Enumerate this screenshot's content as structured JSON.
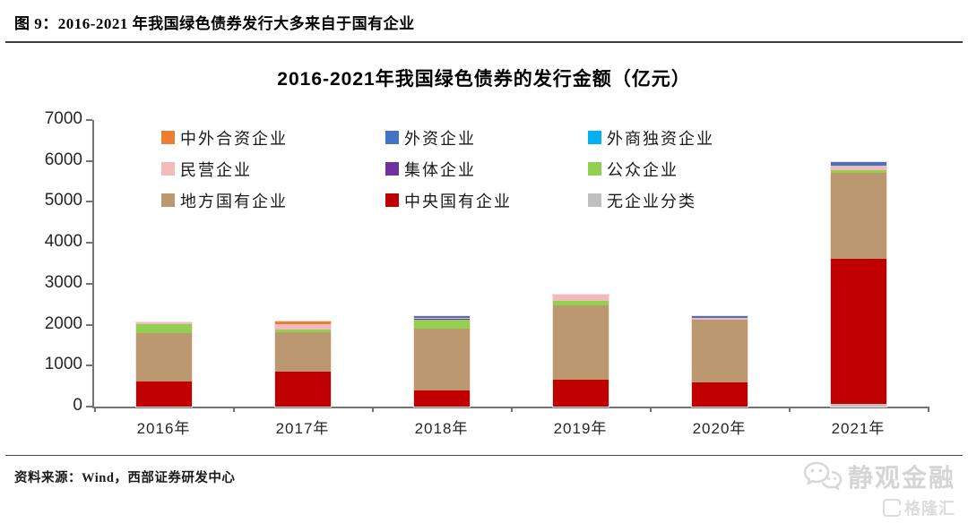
{
  "page": {
    "figure_caption": "图 9：2016-2021 年我国绿色债券发行大多来自于国有企业",
    "source_note": "资料来源：Wind，西部证券研发中心",
    "watermark": {
      "brand": "静观金融",
      "partner_logo": "格隆汇"
    }
  },
  "icons": {
    "wechat_icon": "wechat-bubbles-icon",
    "gelonghui_icon": "gelonghui-g-icon"
  },
  "chart_data": {
    "type": "bar",
    "stacked": true,
    "title": "2016-2021年我国绿色债券的发行金额（亿元）",
    "unit": "亿元",
    "categories": [
      "2016年",
      "2017年",
      "2018年",
      "2019年",
      "2020年",
      "2021年"
    ],
    "ylim": [
      0,
      7000
    ],
    "yticks": [
      0,
      1000,
      2000,
      3000,
      4000,
      5000,
      6000,
      7000
    ],
    "grid": false,
    "legend_position": "top",
    "legend_order": [
      "中外合资企业",
      "外资企业",
      "外商独资企业",
      "民营企业",
      "集体企业",
      "公众企业",
      "地方国有企业",
      "中央国有企业",
      "无企业分类"
    ],
    "stack_order_note": "series listed bottom-to-top of stack",
    "series": [
      {
        "name": "无企业分类",
        "color": "#BFBFBF",
        "values": [
          0,
          0,
          0,
          0,
          0,
          75
        ]
      },
      {
        "name": "中央国有企业",
        "color": "#C00000",
        "values": [
          610,
          855,
          400,
          650,
          585,
          3535
        ]
      },
      {
        "name": "地方国有企业",
        "color": "#BC9870",
        "values": [
          1180,
          970,
          1495,
          1815,
          1540,
          2100
        ]
      },
      {
        "name": "公众企业",
        "color": "#92D050",
        "values": [
          220,
          55,
          220,
          115,
          0,
          75
        ]
      },
      {
        "name": "集体企业",
        "color": "#7030A0",
        "values": [
          0,
          0,
          30,
          0,
          0,
          0
        ]
      },
      {
        "name": "民营企业",
        "color": "#F2BABB",
        "values": [
          45,
          130,
          30,
          155,
          45,
          100
        ]
      },
      {
        "name": "外商独资企业",
        "color": "#00B0F0",
        "values": [
          0,
          0,
          0,
          0,
          0,
          0
        ]
      },
      {
        "name": "外资企业",
        "color": "#4472C4",
        "values": [
          0,
          0,
          25,
          0,
          40,
          90
        ]
      },
      {
        "name": "中外合资企业",
        "color": "#ED7D31",
        "values": [
          0,
          65,
          0,
          0,
          0,
          0
        ]
      }
    ],
    "totals": [
      2055,
      2075,
      2200,
      2735,
      2210,
      5975
    ]
  }
}
